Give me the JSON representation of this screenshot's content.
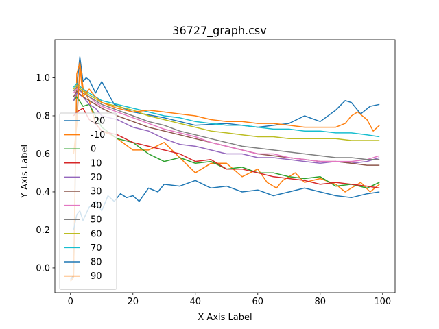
{
  "chart_data": {
    "type": "line",
    "title": "36727_graph.csv",
    "xlabel": "X Axis Label",
    "ylabel": "Y Axis Label",
    "xlim": [
      -5,
      104
    ],
    "ylim": [
      -0.13,
      1.2
    ],
    "xticks": [
      0,
      20,
      40,
      60,
      80,
      100
    ],
    "yticks": [
      0.0,
      0.2,
      0.4,
      0.6,
      0.8,
      1.0
    ],
    "xtick_labels": [
      "0",
      "20",
      "40",
      "60",
      "80",
      "100"
    ],
    "ytick_labels": [
      "0.0",
      "0.2",
      "0.4",
      "0.6",
      "0.8",
      "1.0"
    ],
    "grid": false,
    "legend_position": "lower-left",
    "series": [
      {
        "name": "-20",
        "color": "#1f77b4",
        "points": [
          [
            0,
            -0.06
          ],
          [
            1,
            -0.04
          ],
          [
            2,
            0.95
          ],
          [
            3,
            1.11
          ],
          [
            4,
            0.98
          ],
          [
            5,
            1.0
          ],
          [
            6,
            0.99
          ],
          [
            8,
            0.92
          ],
          [
            10,
            0.98
          ],
          [
            14,
            0.86
          ],
          [
            20,
            0.82
          ],
          [
            30,
            0.79
          ],
          [
            40,
            0.75
          ],
          [
            50,
            0.76
          ],
          [
            60,
            0.74
          ],
          [
            70,
            0.76
          ],
          [
            75,
            0.8
          ],
          [
            80,
            0.77
          ],
          [
            85,
            0.83
          ],
          [
            88,
            0.88
          ],
          [
            90,
            0.87
          ],
          [
            93,
            0.81
          ],
          [
            96,
            0.85
          ],
          [
            99,
            0.86
          ]
        ]
      },
      {
        "name": "-10",
        "color": "#ff7f0e",
        "points": [
          [
            0,
            -0.07
          ],
          [
            1,
            -0.05
          ],
          [
            2,
            1.02
          ],
          [
            3,
            1.08
          ],
          [
            4,
            0.95
          ],
          [
            6,
            0.88
          ],
          [
            8,
            0.76
          ],
          [
            10,
            0.72
          ],
          [
            13,
            0.7
          ],
          [
            15,
            0.68
          ],
          [
            20,
            0.62
          ],
          [
            25,
            0.62
          ],
          [
            30,
            0.66
          ],
          [
            35,
            0.58
          ],
          [
            40,
            0.5
          ],
          [
            45,
            0.55
          ],
          [
            50,
            0.55
          ],
          [
            55,
            0.48
          ],
          [
            60,
            0.52
          ],
          [
            63,
            0.45
          ],
          [
            66,
            0.42
          ],
          [
            68,
            0.46
          ],
          [
            72,
            0.5
          ],
          [
            75,
            0.45
          ],
          [
            80,
            0.47
          ],
          [
            85,
            0.44
          ],
          [
            88,
            0.4
          ],
          [
            90,
            0.42
          ],
          [
            93,
            0.45
          ],
          [
            96,
            0.4
          ],
          [
            99,
            0.44
          ]
        ]
      },
      {
        "name": "0",
        "color": "#2ca02c",
        "points": [
          [
            1,
            0.88
          ],
          [
            2,
            0.9
          ],
          [
            4,
            0.85
          ],
          [
            6,
            0.86
          ],
          [
            8,
            0.8
          ],
          [
            10,
            0.74
          ],
          [
            15,
            0.68
          ],
          [
            20,
            0.66
          ],
          [
            25,
            0.6
          ],
          [
            30,
            0.56
          ],
          [
            35,
            0.58
          ],
          [
            40,
            0.55
          ],
          [
            45,
            0.56
          ],
          [
            50,
            0.52
          ],
          [
            55,
            0.53
          ],
          [
            60,
            0.5
          ],
          [
            65,
            0.5
          ],
          [
            70,
            0.48
          ],
          [
            75,
            0.47
          ],
          [
            80,
            0.48
          ],
          [
            85,
            0.43
          ],
          [
            90,
            0.44
          ],
          [
            95,
            0.42
          ],
          [
            99,
            0.45
          ]
        ]
      },
      {
        "name": "10",
        "color": "#d62728",
        "points": [
          [
            1,
            0.8
          ],
          [
            2,
            0.82
          ],
          [
            4,
            0.84
          ],
          [
            6,
            0.78
          ],
          [
            8,
            0.76
          ],
          [
            10,
            0.72
          ],
          [
            15,
            0.7
          ],
          [
            20,
            0.66
          ],
          [
            25,
            0.64
          ],
          [
            30,
            0.62
          ],
          [
            35,
            0.6
          ],
          [
            40,
            0.56
          ],
          [
            45,
            0.57
          ],
          [
            50,
            0.52
          ],
          [
            55,
            0.52
          ],
          [
            60,
            0.5
          ],
          [
            65,
            0.48
          ],
          [
            70,
            0.47
          ],
          [
            75,
            0.46
          ],
          [
            80,
            0.44
          ],
          [
            85,
            0.45
          ],
          [
            90,
            0.44
          ],
          [
            95,
            0.43
          ],
          [
            99,
            0.42
          ]
        ]
      },
      {
        "name": "20",
        "color": "#9467bd",
        "points": [
          [
            1,
            0.88
          ],
          [
            2,
            0.92
          ],
          [
            4,
            0.9
          ],
          [
            6,
            0.86
          ],
          [
            8,
            0.84
          ],
          [
            10,
            0.8
          ],
          [
            15,
            0.78
          ],
          [
            20,
            0.74
          ],
          [
            25,
            0.72
          ],
          [
            30,
            0.68
          ],
          [
            35,
            0.65
          ],
          [
            40,
            0.64
          ],
          [
            45,
            0.62
          ],
          [
            50,
            0.6
          ],
          [
            55,
            0.6
          ],
          [
            60,
            0.58
          ],
          [
            65,
            0.58
          ],
          [
            70,
            0.57
          ],
          [
            75,
            0.56
          ],
          [
            80,
            0.55
          ],
          [
            85,
            0.56
          ],
          [
            90,
            0.55
          ],
          [
            95,
            0.56
          ],
          [
            99,
            0.58
          ]
        ]
      },
      {
        "name": "30",
        "color": "#8c564b",
        "points": [
          [
            1,
            0.9
          ],
          [
            2,
            0.93
          ],
          [
            4,
            0.9
          ],
          [
            6,
            0.88
          ],
          [
            8,
            0.86
          ],
          [
            10,
            0.84
          ],
          [
            15,
            0.8
          ],
          [
            20,
            0.77
          ],
          [
            25,
            0.74
          ],
          [
            30,
            0.72
          ],
          [
            35,
            0.7
          ],
          [
            40,
            0.68
          ],
          [
            45,
            0.66
          ],
          [
            50,
            0.64
          ],
          [
            55,
            0.62
          ],
          [
            60,
            0.6
          ],
          [
            65,
            0.59
          ],
          [
            70,
            0.58
          ],
          [
            75,
            0.57
          ],
          [
            80,
            0.56
          ],
          [
            85,
            0.56
          ],
          [
            90,
            0.55
          ],
          [
            95,
            0.54
          ],
          [
            99,
            0.54
          ]
        ]
      },
      {
        "name": "40",
        "color": "#e377c2",
        "points": [
          [
            1,
            0.92
          ],
          [
            2,
            0.94
          ],
          [
            4,
            0.92
          ],
          [
            6,
            0.9
          ],
          [
            8,
            0.87
          ],
          [
            10,
            0.85
          ],
          [
            15,
            0.82
          ],
          [
            20,
            0.79
          ],
          [
            25,
            0.76
          ],
          [
            30,
            0.73
          ],
          [
            35,
            0.71
          ],
          [
            40,
            0.69
          ],
          [
            45,
            0.66
          ],
          [
            50,
            0.64
          ],
          [
            55,
            0.62
          ],
          [
            60,
            0.6
          ],
          [
            65,
            0.6
          ],
          [
            70,
            0.58
          ],
          [
            75,
            0.57
          ],
          [
            80,
            0.56
          ],
          [
            85,
            0.56
          ],
          [
            90,
            0.56
          ],
          [
            95,
            0.57
          ],
          [
            99,
            0.59
          ]
        ]
      },
      {
        "name": "50",
        "color": "#7f7f7f",
        "points": [
          [
            1,
            0.93
          ],
          [
            2,
            0.95
          ],
          [
            4,
            0.92
          ],
          [
            6,
            0.9
          ],
          [
            8,
            0.88
          ],
          [
            10,
            0.86
          ],
          [
            15,
            0.83
          ],
          [
            20,
            0.8
          ],
          [
            25,
            0.77
          ],
          [
            30,
            0.75
          ],
          [
            35,
            0.72
          ],
          [
            40,
            0.7
          ],
          [
            45,
            0.68
          ],
          [
            50,
            0.66
          ],
          [
            55,
            0.64
          ],
          [
            60,
            0.63
          ],
          [
            65,
            0.62
          ],
          [
            70,
            0.61
          ],
          [
            75,
            0.6
          ],
          [
            80,
            0.59
          ],
          [
            85,
            0.58
          ],
          [
            90,
            0.58
          ],
          [
            95,
            0.57
          ],
          [
            99,
            0.57
          ]
        ]
      },
      {
        "name": "60",
        "color": "#bcbd22",
        "points": [
          [
            1,
            0.94
          ],
          [
            2,
            0.96
          ],
          [
            4,
            0.93
          ],
          [
            6,
            0.91
          ],
          [
            8,
            0.89
          ],
          [
            10,
            0.87
          ],
          [
            15,
            0.85
          ],
          [
            20,
            0.83
          ],
          [
            25,
            0.8
          ],
          [
            30,
            0.78
          ],
          [
            35,
            0.76
          ],
          [
            40,
            0.74
          ],
          [
            45,
            0.72
          ],
          [
            50,
            0.71
          ],
          [
            55,
            0.7
          ],
          [
            60,
            0.69
          ],
          [
            65,
            0.69
          ],
          [
            70,
            0.68
          ],
          [
            75,
            0.68
          ],
          [
            80,
            0.68
          ],
          [
            85,
            0.68
          ],
          [
            90,
            0.67
          ],
          [
            95,
            0.67
          ],
          [
            99,
            0.67
          ]
        ]
      },
      {
        "name": "70",
        "color": "#17becf",
        "points": [
          [
            1,
            0.95
          ],
          [
            2,
            0.97
          ],
          [
            4,
            0.94
          ],
          [
            6,
            0.92
          ],
          [
            8,
            0.9
          ],
          [
            10,
            0.88
          ],
          [
            15,
            0.86
          ],
          [
            20,
            0.84
          ],
          [
            25,
            0.82
          ],
          [
            30,
            0.8
          ],
          [
            35,
            0.79
          ],
          [
            40,
            0.77
          ],
          [
            45,
            0.76
          ],
          [
            50,
            0.75
          ],
          [
            55,
            0.75
          ],
          [
            60,
            0.74
          ],
          [
            65,
            0.73
          ],
          [
            70,
            0.73
          ],
          [
            75,
            0.72
          ],
          [
            80,
            0.72
          ],
          [
            85,
            0.71
          ],
          [
            90,
            0.71
          ],
          [
            95,
            0.7
          ],
          [
            99,
            0.69
          ]
        ]
      },
      {
        "name": "80",
        "color": "#1f77b4",
        "points": [
          [
            1,
            0.2
          ],
          [
            2,
            0.28
          ],
          [
            3,
            0.3
          ],
          [
            4,
            0.25
          ],
          [
            6,
            0.32
          ],
          [
            8,
            0.35
          ],
          [
            10,
            0.3
          ],
          [
            12,
            0.38
          ],
          [
            14,
            0.35
          ],
          [
            16,
            0.39
          ],
          [
            18,
            0.37
          ],
          [
            20,
            0.38
          ],
          [
            22,
            0.35
          ],
          [
            25,
            0.42
          ],
          [
            28,
            0.4
          ],
          [
            30,
            0.44
          ],
          [
            35,
            0.43
          ],
          [
            40,
            0.46
          ],
          [
            45,
            0.42
          ],
          [
            50,
            0.43
          ],
          [
            55,
            0.4
          ],
          [
            60,
            0.41
          ],
          [
            65,
            0.38
          ],
          [
            70,
            0.4
          ],
          [
            75,
            0.42
          ],
          [
            80,
            0.4
          ],
          [
            85,
            0.38
          ],
          [
            90,
            0.37
          ],
          [
            95,
            0.39
          ],
          [
            99,
            0.4
          ]
        ]
      },
      {
        "name": "90",
        "color": "#ff7f0e",
        "points": [
          [
            1,
            0.6
          ],
          [
            2,
            0.75
          ],
          [
            3,
            1.06
          ],
          [
            4,
            0.9
          ],
          [
            6,
            0.94
          ],
          [
            8,
            0.9
          ],
          [
            10,
            0.87
          ],
          [
            15,
            0.84
          ],
          [
            20,
            0.82
          ],
          [
            25,
            0.83
          ],
          [
            30,
            0.82
          ],
          [
            35,
            0.81
          ],
          [
            40,
            0.8
          ],
          [
            45,
            0.78
          ],
          [
            50,
            0.77
          ],
          [
            55,
            0.77
          ],
          [
            60,
            0.76
          ],
          [
            65,
            0.76
          ],
          [
            70,
            0.75
          ],
          [
            75,
            0.74
          ],
          [
            80,
            0.74
          ],
          [
            85,
            0.74
          ],
          [
            88,
            0.76
          ],
          [
            90,
            0.8
          ],
          [
            92,
            0.82
          ],
          [
            95,
            0.78
          ],
          [
            97,
            0.72
          ],
          [
            99,
            0.75
          ]
        ]
      }
    ]
  }
}
